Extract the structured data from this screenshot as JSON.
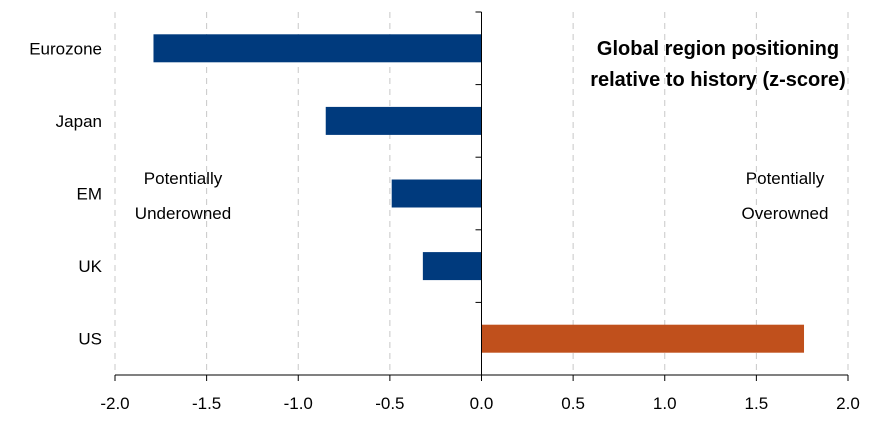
{
  "chart_data": {
    "type": "bar",
    "orientation": "horizontal",
    "title_lines": [
      "Global region positioning",
      "relative to history (z-score)"
    ],
    "categories": [
      "Eurozone",
      "Japan",
      "EM",
      "UK",
      "US"
    ],
    "values": [
      -1.79,
      -0.85,
      -0.49,
      -0.32,
      1.76
    ],
    "bar_colors": [
      "#003a7d",
      "#003a7d",
      "#003a7d",
      "#003a7d",
      "#c0501c"
    ],
    "x_ticks": [
      "-2.0",
      "-1.5",
      "-1.0",
      "-0.5",
      "0.0",
      "0.5",
      "1.0",
      "1.5",
      "2.0"
    ],
    "xlim": [
      -2.0,
      2.0
    ],
    "grid": "vertical dashed",
    "annotations": {
      "left": [
        "Potentially",
        "Underowned"
      ],
      "right": [
        "Potentially",
        "Overowned"
      ]
    }
  }
}
